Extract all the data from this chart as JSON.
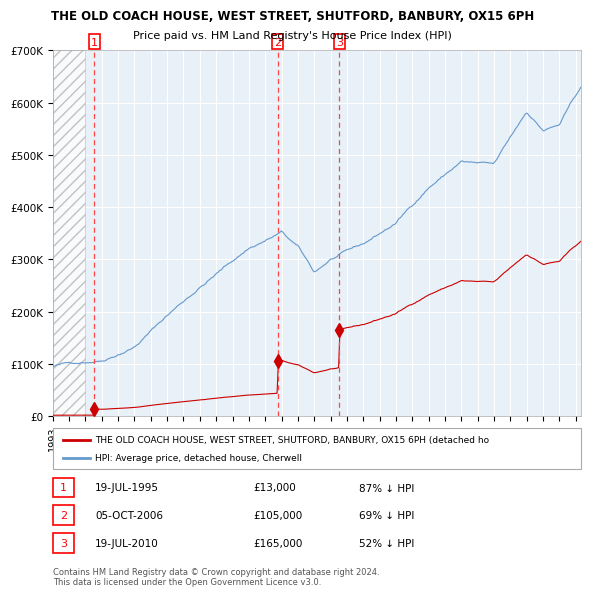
{
  "title": "THE OLD COACH HOUSE, WEST STREET, SHUTFORD, BANBURY, OX15 6PH",
  "subtitle": "Price paid vs. HM Land Registry's House Price Index (HPI)",
  "purchases": [
    {
      "num": 1,
      "date_num": 1995.54,
      "price": 13000,
      "label": "19-JUL-1995",
      "price_str": "£13,000",
      "hpi_pct": "87% ↓ HPI"
    },
    {
      "num": 2,
      "date_num": 2006.76,
      "price": 105000,
      "label": "05-OCT-2006",
      "price_str": "£105,000",
      "hpi_pct": "69% ↓ HPI"
    },
    {
      "num": 3,
      "date_num": 2010.54,
      "price": 165000,
      "label": "19-JUL-2010",
      "price_str": "£165,000",
      "hpi_pct": "52% ↓ HPI"
    }
  ],
  "legend_property": "THE OLD COACH HOUSE, WEST STREET, SHUTFORD, BANBURY, OX15 6PH (detached ho",
  "legend_hpi": "HPI: Average price, detached house, Cherwell",
  "footer": "Contains HM Land Registry data © Crown copyright and database right 2024.\nThis data is licensed under the Open Government Licence v3.0.",
  "property_color": "#cc0000",
  "hpi_color": "#6699cc",
  "dashed_color": "#ff4444",
  "hatch_color": "#cccccc",
  "bg_color": "#e8f0f8",
  "ylim": [
    0,
    700000
  ],
  "xlim_start": 1993.0,
  "xlim_end": 2025.3
}
